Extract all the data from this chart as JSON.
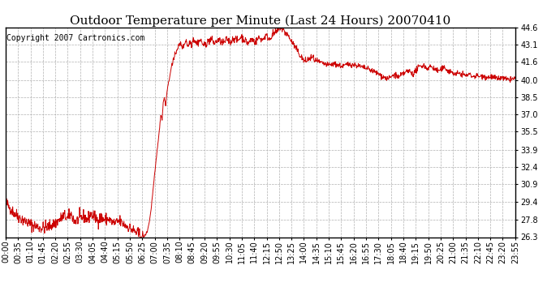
{
  "title": "Outdoor Temperature per Minute (Last 24 Hours) 20070410",
  "copyright_text": "Copyright 2007 Cartronics.com",
  "line_color": "#cc0000",
  "background_color": "#ffffff",
  "plot_background": "#ffffff",
  "grid_color": "#b0b0b0",
  "yticks": [
    26.3,
    27.8,
    29.4,
    30.9,
    32.4,
    33.9,
    35.5,
    37.0,
    38.5,
    40.0,
    41.6,
    43.1,
    44.6
  ],
  "ymin": 26.3,
  "ymax": 44.6,
  "xtick_labels": [
    "00:00",
    "00:35",
    "01:10",
    "01:45",
    "02:20",
    "02:55",
    "03:30",
    "04:05",
    "04:40",
    "05:15",
    "05:50",
    "06:25",
    "07:00",
    "07:35",
    "08:10",
    "08:45",
    "09:20",
    "09:55",
    "10:30",
    "11:05",
    "11:40",
    "12:15",
    "12:50",
    "13:25",
    "14:00",
    "14:35",
    "15:10",
    "15:45",
    "16:20",
    "16:55",
    "17:30",
    "18:05",
    "18:40",
    "19:15",
    "19:50",
    "20:25",
    "21:00",
    "21:35",
    "22:10",
    "22:45",
    "23:20",
    "23:55"
  ],
  "title_fontsize": 11,
  "tick_fontsize": 7,
  "copyright_fontsize": 7,
  "line_width": 0.7
}
